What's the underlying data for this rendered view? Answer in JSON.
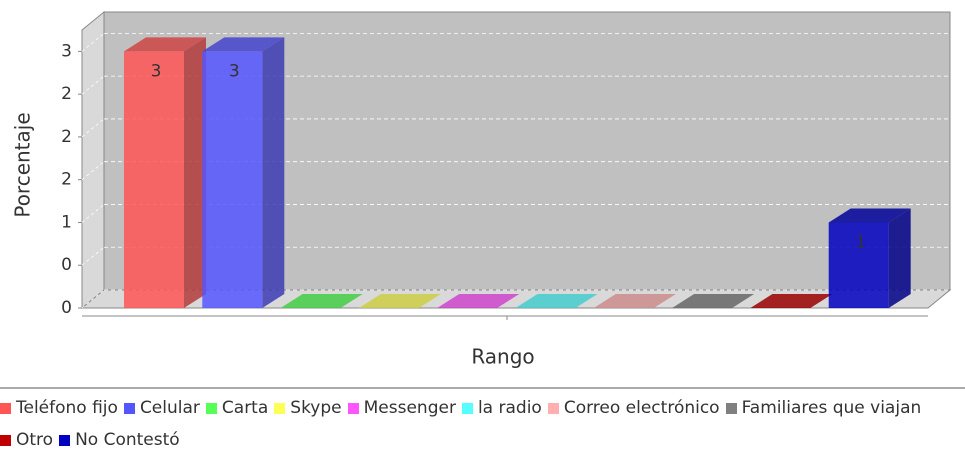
{
  "chart_data": {
    "type": "bar3d",
    "x_label": "Rango",
    "y_label": "Porcentaje",
    "categories": [
      "Teléfono fijo",
      "Celular",
      "Carta",
      "Skype",
      "Messenger",
      "la radio",
      "Correo electrónico",
      "Familiares que viajan",
      "Otro",
      "No Contestó"
    ],
    "values": [
      3,
      3,
      0,
      0,
      0,
      0,
      0,
      0,
      0,
      1
    ],
    "value_labels": [
      "3",
      "3",
      null,
      null,
      null,
      null,
      null,
      null,
      null,
      "1"
    ],
    "colors": [
      "#ff5555",
      "#5555ff",
      "#55ff55",
      "#ffff55",
      "#ff55ff",
      "#55ffff",
      "#ffafaf",
      "#808080",
      "#c00000",
      "#0000c0"
    ],
    "ylim": [
      0,
      3.25
    ],
    "yticks": [
      0,
      {
        "value": 0.5,
        "label": "0"
      },
      1,
      {
        "value": 1.5,
        "label": "2"
      },
      2,
      {
        "value": 2.5,
        "label": "2"
      },
      3
    ],
    "grid": true,
    "legend": "bottom"
  }
}
